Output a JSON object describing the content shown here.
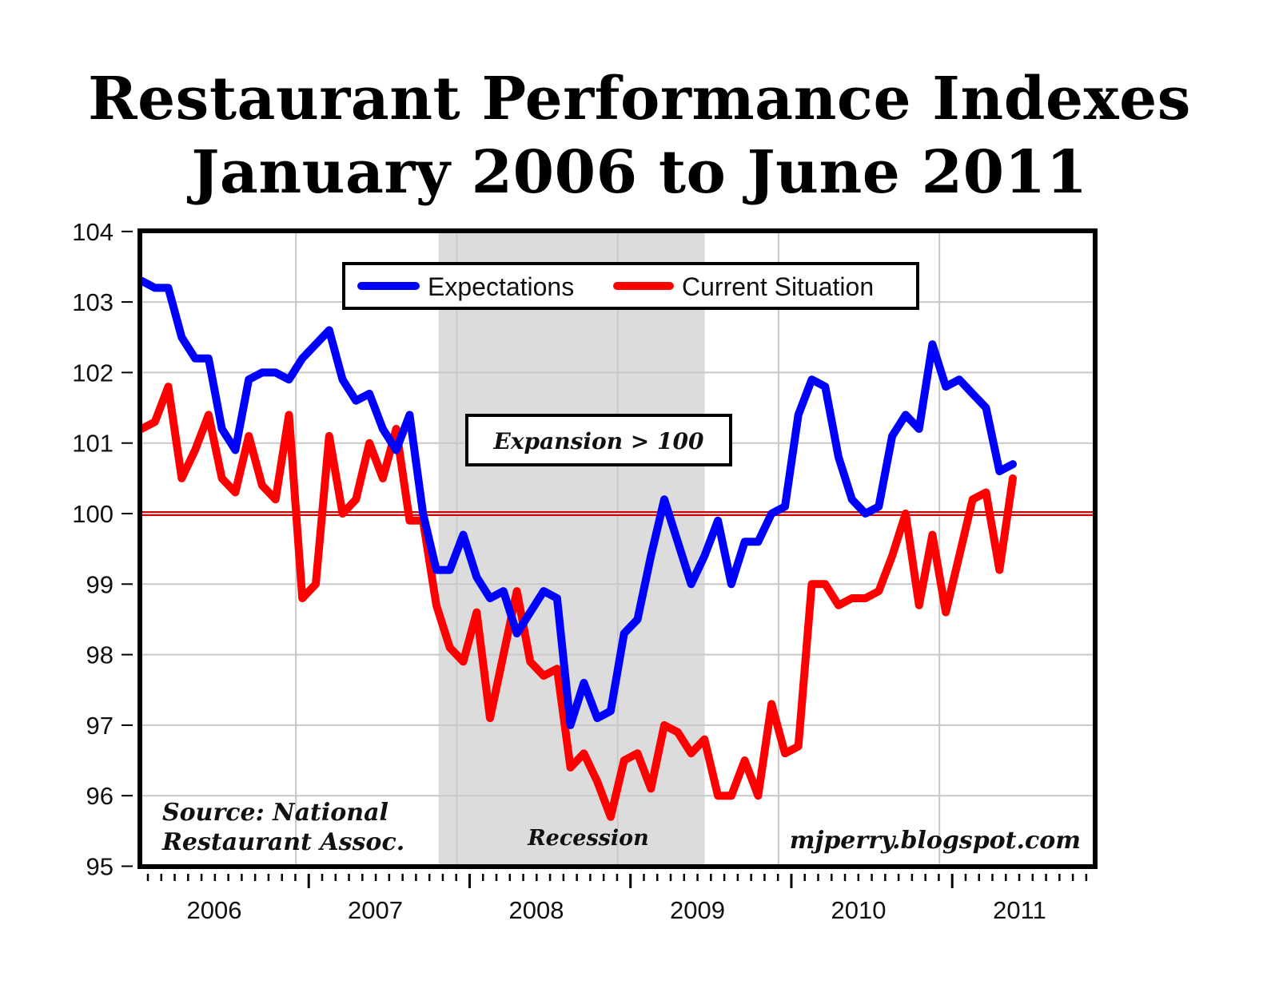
{
  "title": {
    "line1": "Restaurant Performance Indexes",
    "line2": "January 2006 to June 2011"
  },
  "annotations": {
    "expansion": "Expansion > 100",
    "recession": "Recession",
    "source_line1": "Source: National",
    "source_line2": "Restaurant Assoc.",
    "credit": "mjperry.blogspot.com"
  },
  "legend": {
    "items": [
      {
        "label": "Expectations",
        "color": "#0000ff"
      },
      {
        "label": "Current Situation",
        "color": "#ff0000"
      }
    ]
  },
  "colors": {
    "expectations": "#0000ff",
    "current": "#ff0000",
    "recession_shade": "#dcdcdc",
    "reference_line": "#d40000",
    "grid": "#c8c8c8"
  },
  "chart_data": {
    "type": "line",
    "title": "Restaurant Performance Indexes January 2006 to June 2011",
    "xlabel": "",
    "ylabel": "",
    "ylim": [
      95,
      104
    ],
    "yticks": [
      95,
      96,
      97,
      98,
      99,
      100,
      101,
      102,
      103,
      104
    ],
    "xtick_labels": [
      "2006",
      "2007",
      "2008",
      "2009",
      "2010",
      "2011"
    ],
    "x_start": "2006-01",
    "x_end": "2011-06",
    "frequency": "monthly",
    "grid": true,
    "legend_position": "top-center",
    "reference_line": {
      "y": 100,
      "label": "Expansion > 100"
    },
    "shaded_regions": [
      {
        "from": "2007-12",
        "to": "2009-06",
        "label": "Recession"
      }
    ],
    "series": [
      {
        "name": "Expectations",
        "color": "#0000ff",
        "values": [
          103.3,
          103.2,
          103.2,
          102.5,
          102.2,
          102.2,
          101.2,
          100.9,
          101.9,
          102.0,
          102.0,
          101.9,
          102.2,
          102.4,
          102.6,
          101.9,
          101.6,
          101.7,
          101.2,
          100.9,
          101.4,
          100.0,
          99.2,
          99.2,
          99.7,
          99.1,
          98.8,
          98.9,
          98.3,
          98.6,
          98.9,
          98.8,
          97.0,
          97.6,
          97.1,
          97.2,
          98.3,
          98.5,
          99.4,
          100.2,
          99.6,
          99.0,
          99.4,
          99.9,
          99.0,
          99.6,
          99.6,
          100.0,
          100.1,
          101.4,
          101.9,
          101.8,
          100.8,
          100.2,
          100.0,
          100.1,
          101.1,
          101.4,
          101.2,
          102.4,
          101.8,
          101.9,
          101.7,
          101.5,
          100.6,
          100.7
        ]
      },
      {
        "name": "Current Situation",
        "color": "#ff0000",
        "values": [
          101.2,
          101.3,
          101.8,
          100.5,
          100.9,
          101.4,
          100.5,
          100.3,
          101.1,
          100.4,
          100.2,
          101.4,
          98.8,
          99.0,
          101.1,
          100.0,
          100.2,
          101.0,
          100.5,
          101.2,
          99.9,
          99.9,
          98.7,
          98.1,
          97.9,
          98.6,
          97.1,
          98.0,
          98.9,
          97.9,
          97.7,
          97.8,
          96.4,
          96.6,
          96.2,
          95.7,
          96.5,
          96.6,
          96.1,
          97.0,
          96.9,
          96.6,
          96.8,
          96.0,
          96.0,
          96.5,
          96.0,
          97.3,
          96.6,
          96.7,
          99.0,
          99.0,
          98.7,
          98.8,
          98.8,
          98.9,
          99.4,
          100.0,
          98.7,
          99.7,
          98.6,
          99.4,
          100.2,
          100.3,
          99.2,
          100.5
        ]
      }
    ]
  }
}
